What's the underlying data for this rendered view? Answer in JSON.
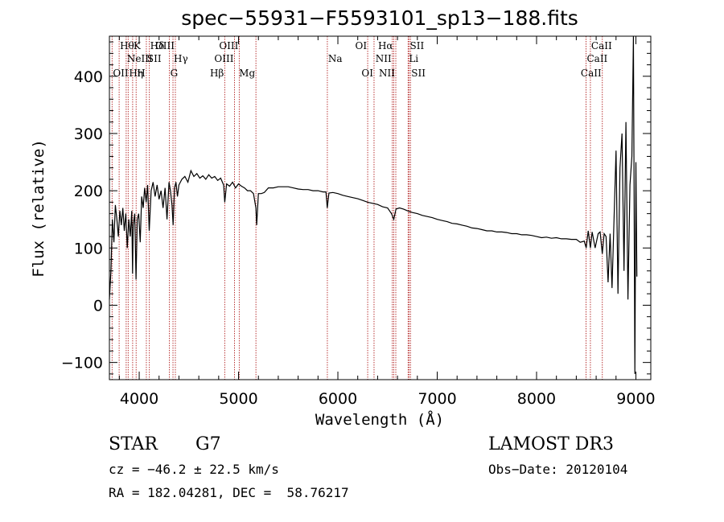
{
  "chart_data": {
    "type": "line",
    "title": "spec−55931−F5593101_sp13−188.fits",
    "xlabel": "Wavelength (Å)",
    "ylabel": "Flux (relative)",
    "xlim": [
      3700,
      9150
    ],
    "ylim": [
      -130,
      470
    ],
    "x_ticks": [
      4000,
      5000,
      6000,
      7000,
      8000,
      9000
    ],
    "x_tick_labels": [
      "4000",
      "5000",
      "6000",
      "7000",
      "8000",
      "9000"
    ],
    "y_ticks": [
      -100,
      0,
      100,
      200,
      300,
      400
    ],
    "y_tick_labels": [
      "−100",
      "0",
      "100",
      "200",
      "300",
      "400"
    ],
    "series": [
      {
        "name": "flux",
        "x": [
          3700,
          3715,
          3730,
          3745,
          3760,
          3775,
          3790,
          3805,
          3820,
          3835,
          3850,
          3865,
          3880,
          3895,
          3910,
          3925,
          3933,
          3940,
          3955,
          3968,
          3980,
          3995,
          4010,
          4025,
          4040,
          4055,
          4070,
          4085,
          4101,
          4120,
          4140,
          4160,
          4180,
          4200,
          4220,
          4240,
          4260,
          4280,
          4300,
          4315,
          4330,
          4341,
          4355,
          4370,
          4385,
          4400,
          4430,
          4460,
          4490,
          4520,
          4550,
          4580,
          4610,
          4640,
          4670,
          4700,
          4730,
          4760,
          4790,
          4820,
          4850,
          4861,
          4880,
          4910,
          4940,
          4970,
          5000,
          5030,
          5060,
          5090,
          5120,
          5150,
          5175,
          5183,
          5200,
          5230,
          5260,
          5300,
          5350,
          5400,
          5450,
          5500,
          5550,
          5600,
          5650,
          5700,
          5750,
          5800,
          5850,
          5880,
          5893,
          5910,
          5950,
          6000,
          6050,
          6100,
          6150,
          6200,
          6250,
          6300,
          6350,
          6400,
          6450,
          6500,
          6540,
          6563,
          6585,
          6620,
          6660,
          6700,
          6750,
          6800,
          6850,
          6900,
          6950,
          7000,
          7050,
          7100,
          7150,
          7200,
          7250,
          7300,
          7350,
          7400,
          7450,
          7500,
          7550,
          7600,
          7650,
          7700,
          7750,
          7800,
          7850,
          7900,
          7950,
          8000,
          8050,
          8100,
          8150,
          8200,
          8250,
          8300,
          8350,
          8400,
          8440,
          8480,
          8500,
          8520,
          8542,
          8560,
          8590,
          8620,
          8640,
          8662,
          8680,
          8700,
          8720,
          8740,
          8760,
          8780,
          8800,
          8820,
          8840,
          8860,
          8880,
          8900,
          8920,
          8940,
          8960,
          8975,
          8990,
          9000,
          9010
        ],
        "values": [
          10,
          60,
          150,
          110,
          175,
          150,
          120,
          165,
          140,
          170,
          130,
          160,
          100,
          150,
          120,
          165,
          55,
          140,
          160,
          45,
          150,
          160,
          110,
          190,
          170,
          205,
          180,
          210,
          130,
          200,
          215,
          190,
          210,
          185,
          200,
          170,
          205,
          150,
          215,
          200,
          175,
          140,
          205,
          215,
          190,
          210,
          220,
          225,
          215,
          235,
          225,
          230,
          222,
          226,
          220,
          228,
          222,
          225,
          218,
          222,
          210,
          180,
          212,
          208,
          215,
          205,
          212,
          208,
          205,
          200,
          200,
          195,
          170,
          140,
          195,
          195,
          197,
          205,
          205,
          207,
          207,
          207,
          205,
          203,
          202,
          202,
          200,
          200,
          198,
          198,
          170,
          196,
          197,
          195,
          192,
          190,
          188,
          186,
          183,
          180,
          178,
          176,
          172,
          170,
          160,
          150,
          168,
          170,
          168,
          165,
          162,
          160,
          157,
          155,
          153,
          150,
          148,
          146,
          143,
          142,
          140,
          138,
          135,
          134,
          132,
          130,
          130,
          128,
          128,
          127,
          125,
          125,
          123,
          123,
          122,
          120,
          118,
          119,
          117,
          118,
          116,
          116,
          115,
          115,
          110,
          112,
          100,
          130,
          100,
          128,
          100,
          125,
          128,
          90,
          125,
          120,
          40,
          125,
          30,
          150,
          270,
          20,
          240,
          300,
          60,
          320,
          10,
          210,
          260,
          470,
          -120,
          250,
          50
        ]
      }
    ],
    "spectral_lines": [
      {
        "x": 3727,
        "text": "OII",
        "row": 3,
        "side": "right"
      },
      {
        "x": 3798,
        "text": "Hθ",
        "row": 1,
        "side": "right"
      },
      {
        "x": 3869,
        "text": "NeIII",
        "row": 2,
        "side": "right"
      },
      {
        "x": 3889,
        "text": "Hη",
        "row": 3,
        "side": "right"
      },
      {
        "x": 3934,
        "text": "K",
        "row": 1,
        "side": "right"
      },
      {
        "x": 3969,
        "text": "H",
        "row": 3,
        "side": "right"
      },
      {
        "x": 4072,
        "text": "SII",
        "row": 2,
        "side": "right"
      },
      {
        "x": 4102,
        "text": "Hδ",
        "row": 1,
        "side": "right"
      },
      {
        "x": 4304,
        "text": "G",
        "row": 3,
        "side": "right"
      },
      {
        "x": 4340,
        "text": "Hγ",
        "row": 2,
        "side": "right"
      },
      {
        "x": 4364,
        "text": "OIII",
        "row": 1,
        "side": "left"
      },
      {
        "x": 4861,
        "text": "Hβ",
        "row": 3,
        "side": "left"
      },
      {
        "x": 4959,
        "text": "OIII",
        "row": 2,
        "side": "left"
      },
      {
        "x": 5007,
        "text": "OIII",
        "row": 1,
        "side": "left"
      },
      {
        "x": 5175,
        "text": "Mg",
        "row": 3,
        "side": "left"
      },
      {
        "x": 5894,
        "text": "Na",
        "row": 2,
        "side": "right"
      },
      {
        "x": 6300,
        "text": "OI",
        "row": 1,
        "side": "left"
      },
      {
        "x": 6364,
        "text": "OI",
        "row": 3,
        "side": "left"
      },
      {
        "x": 6548,
        "text": "NII",
        "row": 2,
        "side": "left"
      },
      {
        "x": 6563,
        "text": "Hα",
        "row": 1,
        "side": "left"
      },
      {
        "x": 6583,
        "text": "NII",
        "row": 3,
        "side": "left"
      },
      {
        "x": 6707,
        "text": "Li",
        "row": 2,
        "side": "right"
      },
      {
        "x": 6717,
        "text": "SII",
        "row": 1,
        "side": "right"
      },
      {
        "x": 6731,
        "text": "SII",
        "row": 3,
        "side": "right"
      },
      {
        "x": 8498,
        "text": "CaII",
        "row": 2,
        "side": "right"
      },
      {
        "x": 8542,
        "text": "CaII",
        "row": 1,
        "side": "right"
      },
      {
        "x": 8662,
        "text": "CaII",
        "row": 3,
        "side": "left"
      }
    ]
  },
  "info": {
    "object_class": "STAR",
    "subclass": "G7",
    "survey": "LAMOST DR3",
    "redshift": "cz = −46.2 ± 22.5 km/s",
    "obs_date": "Obs−Date: 20120104",
    "coords": "RA = 182.04281, DEC =  58.76217"
  },
  "colors": {
    "spectrum": "#000000",
    "line_marker": "#b22222",
    "text": "#000000"
  }
}
